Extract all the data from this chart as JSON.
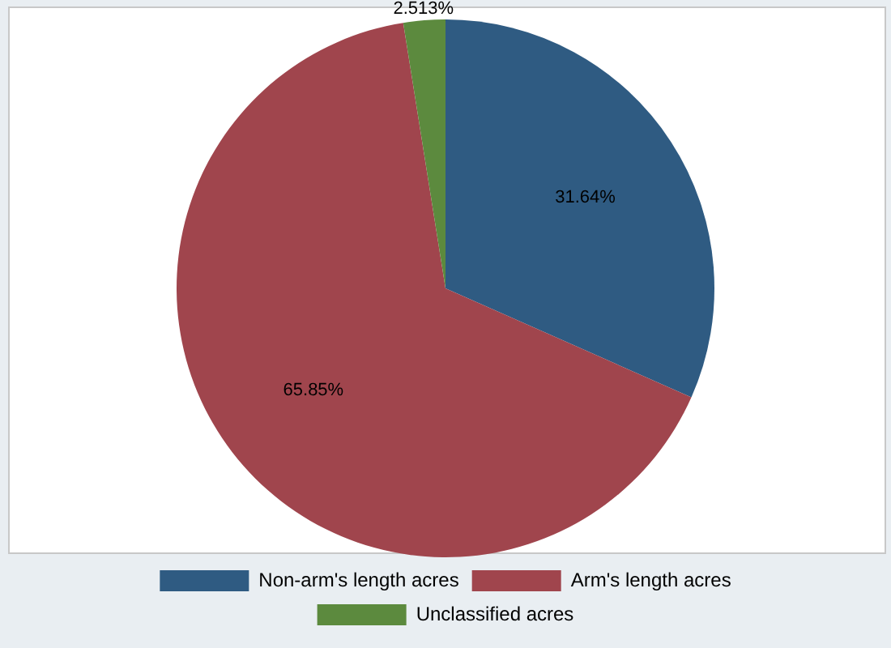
{
  "chart_data": {
    "type": "pie",
    "categories": [
      "Non-arm's length acres",
      "Arm's length acres",
      "Unclassified acres"
    ],
    "values": [
      31.64,
      65.85,
      2.513
    ],
    "colors": [
      "#2f5b82",
      "#a0454d",
      "#5c8a3e"
    ],
    "value_labels": [
      "31.64%",
      "65.85%",
      "2.513%"
    ],
    "legend": "bottom"
  }
}
